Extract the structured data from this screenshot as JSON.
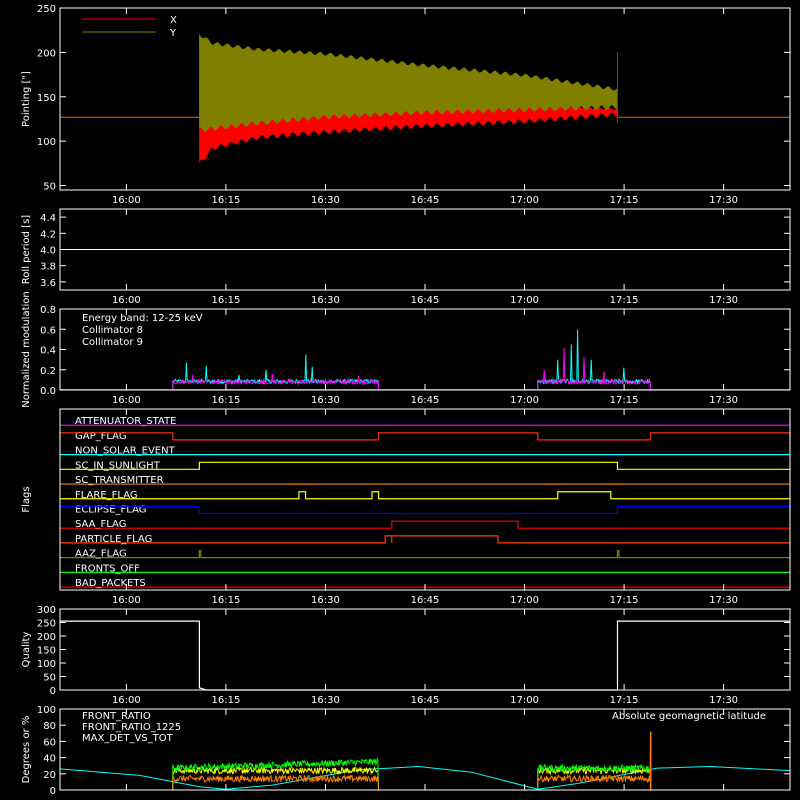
{
  "colors": {
    "background": "#000000",
    "axes": "#ffffff",
    "x_pointing": "#ff0000",
    "y_pointing": "#808000",
    "roll": "#ffffff",
    "collimator_8": "#00ffff",
    "collimator_9": "#ff00ff",
    "quality": "#ffffff",
    "front_ratio": "#ffff00",
    "front_ratio_1225": "#00ff00",
    "max_det_vs_tot": "#ff8000",
    "geomag_latitude": "#00ffff"
  },
  "time_axis": {
    "min": "15:50",
    "max": "17:40",
    "ticks": [
      "16:00",
      "16:15",
      "16:30",
      "16:45",
      "17:00",
      "17:15",
      "17:30"
    ]
  },
  "chart_data": [
    {
      "id": "pointing",
      "type": "area",
      "ylabel": "Pointing [\"]",
      "ylim": [
        45,
        250
      ],
      "yticks": [
        50,
        100,
        150,
        200,
        250
      ],
      "legend": "top-left",
      "series": [
        {
          "name": "X",
          "color": "#ff0000",
          "baseline": 127,
          "active": [
            "16:11",
            "17:14"
          ],
          "upper_env": [
            [
              "16:11",
              170
            ],
            [
              "16:13",
              168
            ],
            [
              "16:20",
              162
            ],
            [
              "16:30",
              158
            ],
            [
              "16:45",
              152
            ],
            [
              "17:00",
              145
            ],
            [
              "17:14",
              138
            ]
          ],
          "lower_env": [
            [
              "16:11",
              72
            ],
            [
              "16:13",
              90
            ],
            [
              "16:20",
              102
            ],
            [
              "16:30",
              108
            ],
            [
              "16:45",
              115
            ],
            [
              "17:00",
              120
            ],
            [
              "17:14",
              128
            ]
          ]
        },
        {
          "name": "Y",
          "color": "#808000",
          "baseline": 127,
          "active": [
            "16:11",
            "17:14"
          ],
          "upper_env": [
            [
              "16:11",
              222
            ],
            [
              "16:13",
              212
            ],
            [
              "16:20",
              205
            ],
            [
              "16:30",
              200
            ],
            [
              "16:45",
              187
            ],
            [
              "17:00",
              176
            ],
            [
              "17:14",
              160
            ]
          ],
          "lower_env": [
            [
              "16:11",
              110
            ],
            [
              "16:13",
              112
            ],
            [
              "16:20",
              118
            ],
            [
              "16:30",
              125
            ],
            [
              "16:45",
              130
            ],
            [
              "17:00",
              133
            ],
            [
              "17:14",
              136
            ]
          ]
        }
      ]
    },
    {
      "id": "roll",
      "type": "line",
      "ylabel": "Roll period [s]",
      "ylim": [
        3.5,
        4.5
      ],
      "yticks": [
        3.6,
        3.8,
        4.0,
        4.2,
        4.4
      ],
      "ytick_labels": [
        "3.6",
        "3.8",
        "4.0",
        "4.2",
        "4.4"
      ],
      "series": [
        {
          "color": "#ffffff",
          "x": [
            "15:50",
            "17:40"
          ],
          "y": [
            4.0,
            4.0
          ]
        }
      ]
    },
    {
      "id": "modulation",
      "type": "line",
      "ylabel": "Normalized modulation",
      "ylim": [
        0,
        0.8
      ],
      "yticks": [
        0.0,
        0.2,
        0.4,
        0.6,
        0.8
      ],
      "ytick_labels": [
        "0.0",
        "0.2",
        "0.4",
        "0.6",
        "0.8"
      ],
      "legend": "top-left",
      "title": "Energy band: 12-25 keV",
      "segments": [
        [
          "16:07",
          "16:38"
        ],
        [
          "17:02",
          "17:19"
        ]
      ],
      "series": [
        {
          "name": "Collimator 8",
          "color": "#00ffff",
          "level": 0.085,
          "spikes": [
            [
              "16:09",
              0.27
            ],
            [
              "16:12",
              0.24
            ],
            [
              "16:17",
              0.15
            ],
            [
              "16:21",
              0.2
            ],
            [
              "16:27",
              0.35
            ],
            [
              "16:28",
              0.23
            ],
            [
              "17:05",
              0.3
            ],
            [
              "17:07",
              0.45
            ],
            [
              "17:08",
              0.6
            ],
            [
              "17:10",
              0.3
            ],
            [
              "17:15",
              0.22
            ]
          ]
        },
        {
          "name": "Collimator 9",
          "color": "#ff00ff",
          "level": 0.08,
          "spikes": [
            [
              "16:10",
              0.15
            ],
            [
              "16:22",
              0.16
            ],
            [
              "16:35",
              0.14
            ],
            [
              "17:03",
              0.2
            ],
            [
              "17:06",
              0.42
            ],
            [
              "17:09",
              0.33
            ],
            [
              "17:12",
              0.18
            ]
          ]
        }
      ]
    },
    {
      "id": "flags",
      "type": "line",
      "ylabel": "Flags",
      "flags": [
        {
          "name": "ATTENUATOR_STATE",
          "color": "#ff00ff",
          "on": []
        },
        {
          "name": "GAP_FLAG",
          "color": "#ff3000",
          "on": [
            [
              "15:50",
              "16:07"
            ],
            [
              "16:38",
              "17:02"
            ],
            [
              "17:19",
              "17:40"
            ]
          ]
        },
        {
          "name": "NON_SOLAR_EVENT",
          "color": "#00ffff",
          "on": []
        },
        {
          "name": "SC_IN_SUNLIGHT",
          "color": "#ffff00",
          "on": [
            [
              "16:11",
              "17:14"
            ]
          ]
        },
        {
          "name": "SC_TRANSMITTER",
          "color": "#ff8000",
          "on": []
        },
        {
          "name": "FLARE_FLAG",
          "color": "#ffff00",
          "on": [
            [
              "16:26",
              "16:27"
            ],
            [
              "16:37",
              "16:38"
            ],
            [
              "17:05",
              "17:13"
            ]
          ]
        },
        {
          "name": "ECLIPSE_FLAG",
          "color": "#0000ff",
          "on": [
            [
              "15:50",
              "16:11"
            ],
            [
              "17:14",
              "17:40"
            ]
          ]
        },
        {
          "name": "SAA_FLAG",
          "color": "#ff0000",
          "on": [
            [
              "16:40",
              "16:59"
            ]
          ]
        },
        {
          "name": "PARTICLE_FLAG",
          "color": "#ff4000",
          "on": [
            [
              "16:39",
              "16:40"
            ],
            [
              "16:40",
              "16:56"
            ]
          ]
        },
        {
          "name": "AAZ_FLAG",
          "color": "#808000",
          "on": [
            [
              "16:11",
              "16:11"
            ],
            [
              "17:14",
              "17:14"
            ]
          ]
        },
        {
          "name": "FRONTS_OFF",
          "color": "#00ff00",
          "on": []
        },
        {
          "name": "BAD_PACKETS",
          "color": "#ff0000",
          "on": []
        }
      ]
    },
    {
      "id": "quality",
      "type": "line",
      "ylabel": "Quality",
      "ylim": [
        0,
        300
      ],
      "yticks": [
        0,
        50,
        100,
        150,
        200,
        250,
        300
      ],
      "series": [
        {
          "color": "#ffffff",
          "x": [
            "15:50",
            "16:11",
            "16:11",
            "16:12",
            "17:14",
            "17:14",
            "17:40"
          ],
          "y": [
            255,
            255,
            8,
            0,
            0,
            255,
            255
          ]
        }
      ]
    },
    {
      "id": "ratios",
      "type": "line",
      "ylabel": "Degrees or %",
      "ylim": [
        0,
        100
      ],
      "yticks": [
        0,
        20,
        40,
        60,
        80,
        100
      ],
      "legend": "top-left",
      "right_label": "Absolute geomagnetic latitude",
      "segments": [
        [
          "16:07",
          "16:38"
        ],
        [
          "17:02",
          "17:19"
        ]
      ],
      "series": [
        {
          "name": "FRONT_RATIO",
          "color": "#ffff00",
          "level": 24
        },
        {
          "name": "FRONT_RATIO_1225",
          "color": "#00ff00",
          "level": 27,
          "rise": 8
        },
        {
          "name": "MAX_DET_VS_TOT",
          "color": "#ff8000",
          "level": 14,
          "spike": [
            "17:19",
            72
          ]
        },
        {
          "name": "Absolute geomagnetic latitude",
          "color": "#00ffff",
          "x": [
            "15:50",
            "16:02",
            "16:11",
            "16:15",
            "16:22",
            "16:35",
            "16:44",
            "16:52",
            "17:02",
            "17:08",
            "17:20",
            "17:28",
            "17:40"
          ],
          "y": [
            26,
            18,
            4,
            1,
            6,
            25,
            29,
            22,
            1,
            8,
            27,
            29,
            24
          ]
        }
      ]
    }
  ]
}
